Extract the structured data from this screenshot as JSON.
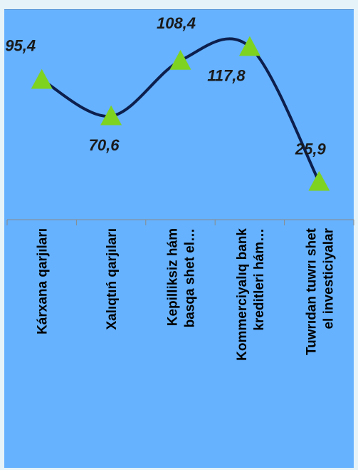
{
  "chart_data": {
    "type": "line",
    "categories": [
      [
        "Kárxana qarjıları"
      ],
      [
        "Xalıqtıń  qarjıları"
      ],
      [
        "Kepilliksiz  hám",
        "basqa shet el…"
      ],
      [
        "Kommerciyalıq bank",
        "kreditleri hám…"
      ],
      [
        "Tuwrıdan tuwrı shet",
        "el investiciyalar"
      ]
    ],
    "values": [
      95.4,
      70.6,
      108.4,
      117.8,
      25.9
    ],
    "data_labels": [
      "95,4",
      "70,6",
      "108,4",
      "117,8",
      "25,9"
    ],
    "ylim": [
      0,
      140
    ],
    "grid": false,
    "legend": "none",
    "line_color": "#0d1f4d",
    "marker": "triangle",
    "marker_color": "#7ed321",
    "background_color": "#66b2ff"
  }
}
